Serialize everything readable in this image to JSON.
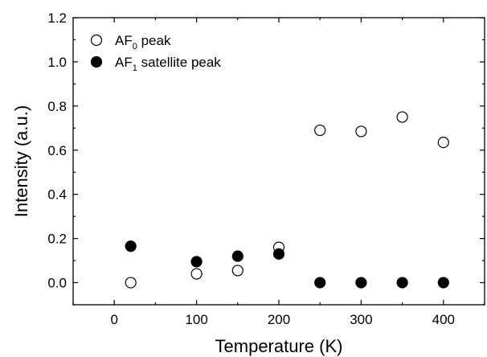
{
  "chart_data": {
    "type": "scatter",
    "xlabel": "Temperature (K)",
    "ylabel": "Intensity (a.u.)",
    "xlim": [
      -50,
      450
    ],
    "ylim": [
      -0.1,
      1.2
    ],
    "x_ticks": [
      0,
      100,
      200,
      300,
      400
    ],
    "y_ticks": [
      0.0,
      0.2,
      0.4,
      0.6,
      0.8,
      1.0,
      1.2
    ],
    "grid": false,
    "legend_position": "top-left",
    "series": [
      {
        "name": "AF0 peak",
        "legend_main": "AF",
        "legend_sub": "0",
        "legend_rest": " peak",
        "marker": "open-circle",
        "x": [
          20,
          100,
          150,
          200,
          250,
          300,
          350,
          400
        ],
        "y": [
          0.0,
          0.04,
          0.055,
          0.16,
          0.69,
          0.685,
          0.75,
          0.635
        ]
      },
      {
        "name": "AF1 satellite peak",
        "legend_main": "AF",
        "legend_sub": "1",
        "legend_rest": " satellite peak",
        "marker": "filled-circle",
        "x": [
          20,
          100,
          150,
          200,
          250,
          300,
          350,
          400
        ],
        "y": [
          0.165,
          0.095,
          0.12,
          0.13,
          0.0,
          0.0,
          0.0,
          0.0
        ]
      }
    ]
  }
}
